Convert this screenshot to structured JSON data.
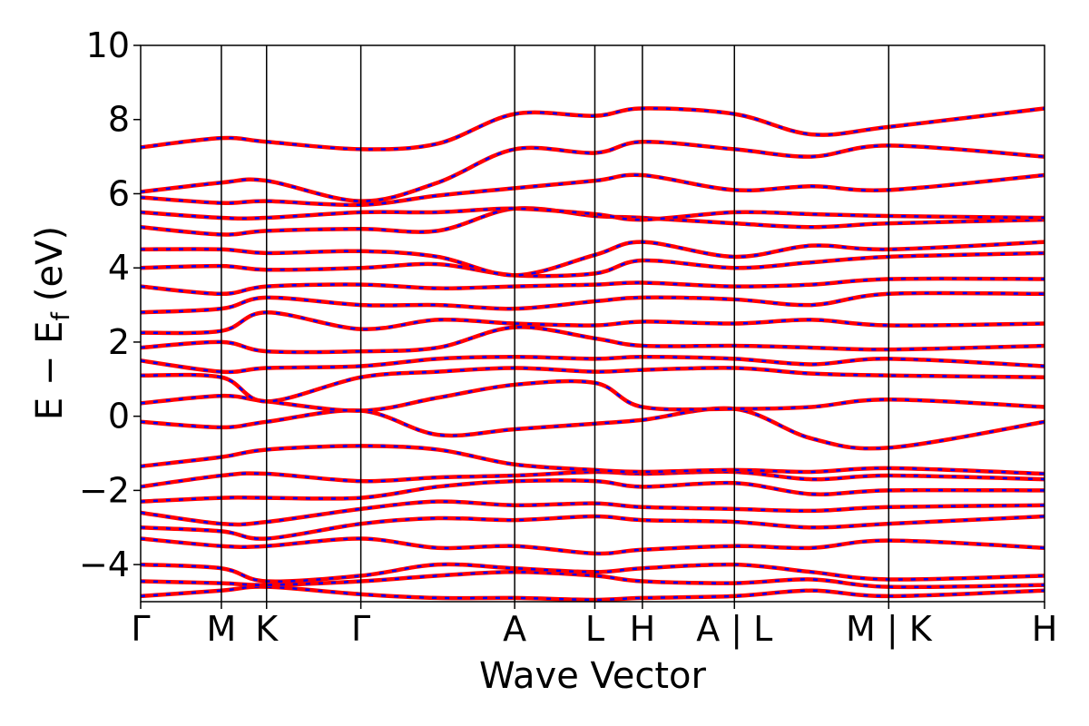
{
  "chart_data": {
    "type": "line",
    "title": "",
    "xlabel": "Wave Vector",
    "ylabel": "E − E_f (eV)",
    "ylabel_parts": {
      "main": "E − E",
      "sub": "f",
      "unit": "(eV)"
    },
    "ylim": [
      -5,
      10
    ],
    "yticks": [
      -4,
      -2,
      0,
      2,
      4,
      6,
      8,
      10
    ],
    "ytick_labels": [
      "−4",
      "−2",
      "0",
      "2",
      "4",
      "6",
      "8",
      "10"
    ],
    "xlim": [
      0,
      1
    ],
    "high_symmetry_points": [
      {
        "label": "Γ",
        "x": 0.0
      },
      {
        "label": "M",
        "x": 0.0893
      },
      {
        "label": "K",
        "x": 0.1393
      },
      {
        "label": "Γ",
        "x": 0.2436
      },
      {
        "label": "A",
        "x": 0.4138
      },
      {
        "label": "L",
        "x": 0.5025
      },
      {
        "label": "H",
        "x": 0.5551
      },
      {
        "label": "A | L",
        "x": 0.6569
      },
      {
        "label": "M | K",
        "x": 0.8276
      },
      {
        "label": "H",
        "x": 1.0
      }
    ],
    "grid": false,
    "legend": "none",
    "series_styles": [
      {
        "color": "#ff0000",
        "style": "solid"
      },
      {
        "color": "#0000ff",
        "style": "dotted"
      }
    ],
    "bands": [
      [
        -4.85,
        -4.7,
        -4.6,
        -4.8,
        -4.9,
        -4.9,
        -4.95,
        -4.9,
        -4.85,
        -4.7,
        -4.85,
        -4.7
      ],
      [
        -4.45,
        -4.5,
        -4.55,
        -4.45,
        -4.3,
        -4.2,
        -4.3,
        -4.45,
        -4.5,
        -4.4,
        -4.6,
        -4.55
      ],
      [
        -4.0,
        -4.1,
        -4.45,
        -4.3,
        -4.0,
        -4.1,
        -4.2,
        -4.1,
        -4.0,
        -4.2,
        -4.4,
        -4.3
      ],
      [
        -3.3,
        -3.5,
        -3.5,
        -3.3,
        -3.55,
        -3.5,
        -3.7,
        -3.6,
        -3.5,
        -3.55,
        -3.35,
        -3.55
      ],
      [
        -3.0,
        -3.1,
        -3.3,
        -2.9,
        -2.75,
        -2.8,
        -2.7,
        -2.8,
        -2.85,
        -3.0,
        -2.9,
        -2.7
      ],
      [
        -2.6,
        -2.9,
        -2.85,
        -2.5,
        -2.3,
        -2.4,
        -2.35,
        -2.45,
        -2.5,
        -2.55,
        -2.45,
        -2.4
      ],
      [
        -2.3,
        -2.2,
        -2.2,
        -2.2,
        -1.9,
        -1.75,
        -1.75,
        -1.9,
        -1.8,
        -2.1,
        -2.0,
        -2.0
      ],
      [
        -1.9,
        -1.6,
        -1.55,
        -1.75,
        -1.65,
        -1.6,
        -1.5,
        -1.55,
        -1.5,
        -1.7,
        -1.6,
        -1.7
      ],
      [
        -1.35,
        -1.1,
        -0.9,
        -0.8,
        -0.9,
        -1.3,
        -1.45,
        -1.5,
        -1.45,
        -1.5,
        -1.4,
        -1.55
      ],
      [
        -0.15,
        -0.3,
        -0.15,
        0.15,
        -0.5,
        -0.35,
        -0.2,
        -0.1,
        0.2,
        -0.6,
        -0.85,
        -0.15
      ],
      [
        0.35,
        0.55,
        0.4,
        0.15,
        0.5,
        0.85,
        0.9,
        0.25,
        0.2,
        0.25,
        0.45,
        0.25
      ],
      [
        1.1,
        1.05,
        0.4,
        1.05,
        1.2,
        1.3,
        1.2,
        1.25,
        1.3,
        1.15,
        1.1,
        1.05
      ],
      [
        1.5,
        1.2,
        1.3,
        1.35,
        1.55,
        1.6,
        1.55,
        1.6,
        1.55,
        1.4,
        1.55,
        1.35
      ],
      [
        1.85,
        2.0,
        1.75,
        1.75,
        1.85,
        2.4,
        2.1,
        1.9,
        1.9,
        1.85,
        1.8,
        1.9
      ],
      [
        2.25,
        2.3,
        2.8,
        2.35,
        2.6,
        2.5,
        2.45,
        2.55,
        2.5,
        2.6,
        2.45,
        2.5
      ],
      [
        2.8,
        2.9,
        3.2,
        3.0,
        3.0,
        2.9,
        3.1,
        3.2,
        3.15,
        3.0,
        3.3,
        3.3
      ],
      [
        3.5,
        3.3,
        3.5,
        3.55,
        3.45,
        3.5,
        3.55,
        3.6,
        3.5,
        3.55,
        3.7,
        3.7
      ],
      [
        4.0,
        4.05,
        3.95,
        4.0,
        4.1,
        3.8,
        3.85,
        4.2,
        4.0,
        4.15,
        4.3,
        4.4
      ],
      [
        4.5,
        4.5,
        4.4,
        4.45,
        4.3,
        3.8,
        4.35,
        4.7,
        4.3,
        4.6,
        4.5,
        4.7
      ],
      [
        5.1,
        4.9,
        5.0,
        5.05,
        5.0,
        5.6,
        5.4,
        5.35,
        5.2,
        5.1,
        5.2,
        5.3
      ],
      [
        5.5,
        5.35,
        5.35,
        5.5,
        5.5,
        5.6,
        5.45,
        5.3,
        5.5,
        5.45,
        5.4,
        5.35
      ],
      [
        5.9,
        5.75,
        5.8,
        5.7,
        5.95,
        6.15,
        6.35,
        6.5,
        6.1,
        6.2,
        6.1,
        6.5
      ],
      [
        6.05,
        6.3,
        6.35,
        5.8,
        6.3,
        7.2,
        7.1,
        7.4,
        7.2,
        7.0,
        7.3,
        7.0
      ],
      [
        7.25,
        7.5,
        7.4,
        7.2,
        7.35,
        8.15,
        8.1,
        8.3,
        8.15,
        7.6,
        7.8,
        8.3
      ]
    ]
  }
}
